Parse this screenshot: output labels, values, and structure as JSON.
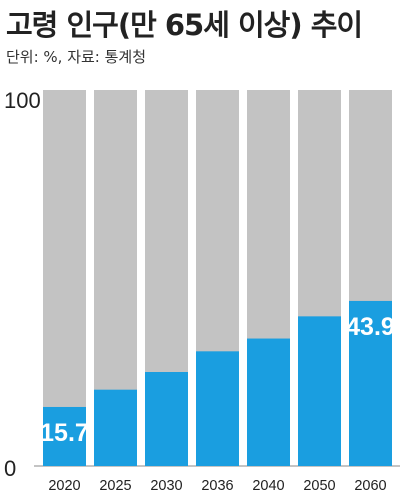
{
  "title": "고령 인구(만 65세 이상) 추이",
  "subtitle": "단위: %, 자료: 통계청",
  "colors": {
    "track": "#c3c3c3",
    "bar": "#1a9ee0",
    "value_text": "#ffffff"
  },
  "chart_data": {
    "type": "bar",
    "categories": [
      "2020",
      "2025",
      "2030",
      "2036",
      "2040",
      "2050",
      "2060"
    ],
    "values": [
      15.7,
      20.3,
      25.0,
      30.5,
      33.9,
      39.8,
      43.9
    ],
    "labeled_values": [
      "15.7",
      "",
      "",
      "",
      "",
      "",
      "43.9"
    ],
    "ylim": [
      0,
      100
    ],
    "y_tick_labels": [
      "100",
      "0"
    ],
    "background_bar_value": 100
  }
}
